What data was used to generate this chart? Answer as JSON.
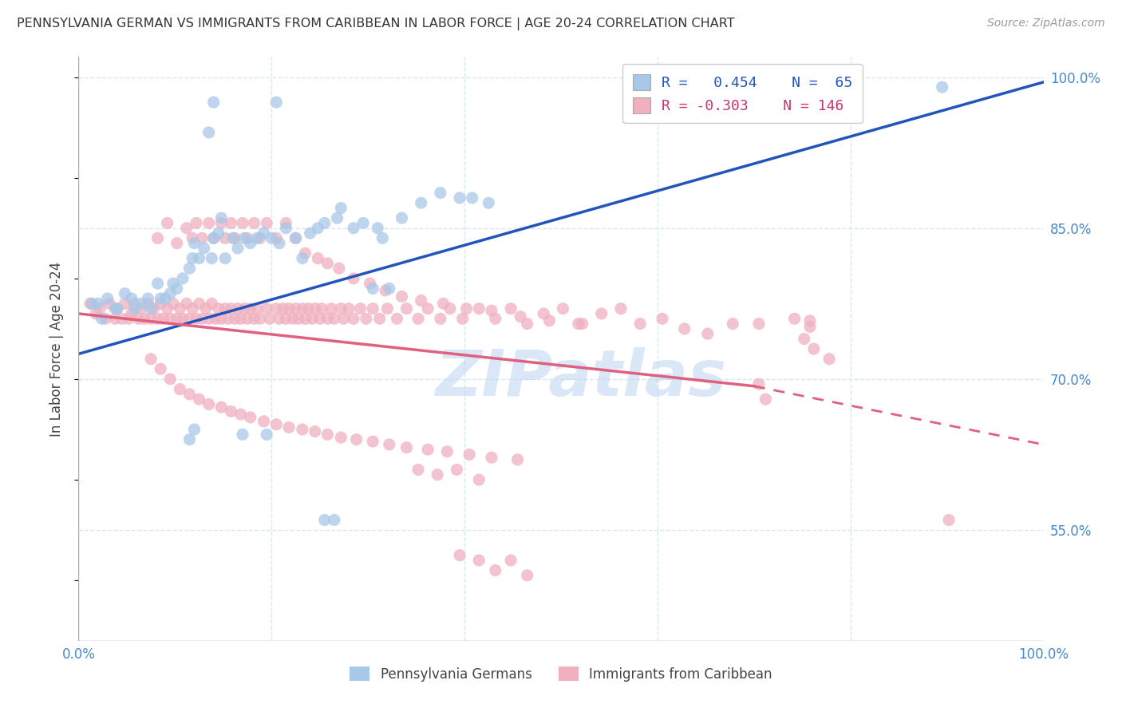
{
  "title": "PENNSYLVANIA GERMAN VS IMMIGRANTS FROM CARIBBEAN IN LABOR FORCE | AGE 20-24 CORRELATION CHART",
  "source": "Source: ZipAtlas.com",
  "ylabel": "In Labor Force | Age 20-24",
  "xlim": [
    0.0,
    1.0
  ],
  "ylim": [
    0.44,
    1.02
  ],
  "x_tick_labels": [
    "0.0%",
    "",
    "",
    "",
    "",
    "100.0%"
  ],
  "x_tick_positions": [
    0.0,
    0.2,
    0.4,
    0.6,
    0.8,
    1.0
  ],
  "y_tick_labels_right": [
    "55.0%",
    "70.0%",
    "85.0%",
    "100.0%"
  ],
  "y_tick_positions_right": [
    0.55,
    0.7,
    0.85,
    1.0
  ],
  "blue_color": "#a8c8e8",
  "pink_color": "#f0b0c0",
  "blue_line_color": "#2255bb",
  "pink_line_color": "#e06080",
  "blue_line": [
    0.0,
    1.0,
    0.725,
    0.995
  ],
  "pink_line_solid": [
    0.0,
    0.7,
    0.765,
    0.693
  ],
  "pink_line_dashed": [
    0.7,
    1.0,
    0.693,
    0.635
  ],
  "blue_scatter": [
    [
      0.014,
      0.775
    ],
    [
      0.02,
      0.775
    ],
    [
      0.024,
      0.76
    ],
    [
      0.03,
      0.78
    ],
    [
      0.038,
      0.77
    ],
    [
      0.04,
      0.77
    ],
    [
      0.048,
      0.785
    ],
    [
      0.055,
      0.78
    ],
    [
      0.058,
      0.77
    ],
    [
      0.065,
      0.775
    ],
    [
      0.072,
      0.78
    ],
    [
      0.075,
      0.77
    ],
    [
      0.082,
      0.795
    ],
    [
      0.085,
      0.78
    ],
    [
      0.09,
      0.78
    ],
    [
      0.095,
      0.785
    ],
    [
      0.098,
      0.795
    ],
    [
      0.102,
      0.79
    ],
    [
      0.108,
      0.8
    ],
    [
      0.115,
      0.81
    ],
    [
      0.118,
      0.82
    ],
    [
      0.12,
      0.835
    ],
    [
      0.125,
      0.82
    ],
    [
      0.13,
      0.83
    ],
    [
      0.138,
      0.82
    ],
    [
      0.14,
      0.84
    ],
    [
      0.145,
      0.845
    ],
    [
      0.148,
      0.86
    ],
    [
      0.152,
      0.82
    ],
    [
      0.16,
      0.84
    ],
    [
      0.165,
      0.83
    ],
    [
      0.172,
      0.84
    ],
    [
      0.178,
      0.835
    ],
    [
      0.185,
      0.84
    ],
    [
      0.192,
      0.845
    ],
    [
      0.2,
      0.84
    ],
    [
      0.208,
      0.835
    ],
    [
      0.215,
      0.85
    ],
    [
      0.225,
      0.84
    ],
    [
      0.232,
      0.82
    ],
    [
      0.24,
      0.845
    ],
    [
      0.248,
      0.85
    ],
    [
      0.255,
      0.855
    ],
    [
      0.268,
      0.86
    ],
    [
      0.272,
      0.87
    ],
    [
      0.285,
      0.85
    ],
    [
      0.295,
      0.855
    ],
    [
      0.31,
      0.85
    ],
    [
      0.315,
      0.84
    ],
    [
      0.335,
      0.86
    ],
    [
      0.355,
      0.875
    ],
    [
      0.375,
      0.885
    ],
    [
      0.395,
      0.88
    ],
    [
      0.408,
      0.88
    ],
    [
      0.425,
      0.875
    ],
    [
      0.115,
      0.64
    ],
    [
      0.12,
      0.65
    ],
    [
      0.17,
      0.645
    ],
    [
      0.195,
      0.645
    ],
    [
      0.255,
      0.56
    ],
    [
      0.265,
      0.56
    ],
    [
      0.305,
      0.79
    ],
    [
      0.322,
      0.79
    ],
    [
      0.72,
      0.98
    ],
    [
      0.895,
      0.99
    ],
    [
      0.135,
      0.945
    ],
    [
      0.14,
      0.975
    ],
    [
      0.205,
      0.975
    ]
  ],
  "pink_scatter": [
    [
      0.012,
      0.775
    ],
    [
      0.018,
      0.765
    ],
    [
      0.022,
      0.77
    ],
    [
      0.028,
      0.76
    ],
    [
      0.032,
      0.775
    ],
    [
      0.038,
      0.76
    ],
    [
      0.04,
      0.77
    ],
    [
      0.045,
      0.76
    ],
    [
      0.048,
      0.775
    ],
    [
      0.052,
      0.76
    ],
    [
      0.055,
      0.765
    ],
    [
      0.058,
      0.775
    ],
    [
      0.062,
      0.76
    ],
    [
      0.065,
      0.77
    ],
    [
      0.068,
      0.76
    ],
    [
      0.072,
      0.775
    ],
    [
      0.075,
      0.76
    ],
    [
      0.078,
      0.77
    ],
    [
      0.082,
      0.76
    ],
    [
      0.085,
      0.775
    ],
    [
      0.088,
      0.76
    ],
    [
      0.092,
      0.77
    ],
    [
      0.095,
      0.76
    ],
    [
      0.098,
      0.775
    ],
    [
      0.102,
      0.76
    ],
    [
      0.105,
      0.77
    ],
    [
      0.108,
      0.76
    ],
    [
      0.112,
      0.775
    ],
    [
      0.115,
      0.76
    ],
    [
      0.118,
      0.77
    ],
    [
      0.122,
      0.76
    ],
    [
      0.125,
      0.775
    ],
    [
      0.128,
      0.76
    ],
    [
      0.132,
      0.77
    ],
    [
      0.135,
      0.76
    ],
    [
      0.138,
      0.775
    ],
    [
      0.142,
      0.76
    ],
    [
      0.145,
      0.77
    ],
    [
      0.148,
      0.76
    ],
    [
      0.152,
      0.77
    ],
    [
      0.155,
      0.76
    ],
    [
      0.158,
      0.77
    ],
    [
      0.162,
      0.76
    ],
    [
      0.165,
      0.77
    ],
    [
      0.168,
      0.76
    ],
    [
      0.172,
      0.77
    ],
    [
      0.175,
      0.76
    ],
    [
      0.178,
      0.77
    ],
    [
      0.182,
      0.76
    ],
    [
      0.185,
      0.77
    ],
    [
      0.188,
      0.76
    ],
    [
      0.195,
      0.77
    ],
    [
      0.198,
      0.76
    ],
    [
      0.205,
      0.77
    ],
    [
      0.208,
      0.76
    ],
    [
      0.212,
      0.77
    ],
    [
      0.215,
      0.76
    ],
    [
      0.218,
      0.77
    ],
    [
      0.222,
      0.76
    ],
    [
      0.225,
      0.77
    ],
    [
      0.228,
      0.76
    ],
    [
      0.232,
      0.77
    ],
    [
      0.235,
      0.76
    ],
    [
      0.238,
      0.77
    ],
    [
      0.242,
      0.76
    ],
    [
      0.245,
      0.77
    ],
    [
      0.25,
      0.76
    ],
    [
      0.252,
      0.77
    ],
    [
      0.258,
      0.76
    ],
    [
      0.262,
      0.77
    ],
    [
      0.265,
      0.76
    ],
    [
      0.272,
      0.77
    ],
    [
      0.275,
      0.76
    ],
    [
      0.28,
      0.77
    ],
    [
      0.285,
      0.76
    ],
    [
      0.292,
      0.77
    ],
    [
      0.298,
      0.76
    ],
    [
      0.305,
      0.77
    ],
    [
      0.312,
      0.76
    ],
    [
      0.32,
      0.77
    ],
    [
      0.33,
      0.76
    ],
    [
      0.34,
      0.77
    ],
    [
      0.352,
      0.76
    ],
    [
      0.362,
      0.77
    ],
    [
      0.375,
      0.76
    ],
    [
      0.385,
      0.77
    ],
    [
      0.398,
      0.76
    ],
    [
      0.415,
      0.77
    ],
    [
      0.432,
      0.76
    ],
    [
      0.448,
      0.77
    ],
    [
      0.465,
      0.755
    ],
    [
      0.482,
      0.765
    ],
    [
      0.502,
      0.77
    ],
    [
      0.522,
      0.755
    ],
    [
      0.542,
      0.765
    ],
    [
      0.562,
      0.77
    ],
    [
      0.582,
      0.755
    ],
    [
      0.605,
      0.76
    ],
    [
      0.628,
      0.75
    ],
    [
      0.652,
      0.745
    ],
    [
      0.678,
      0.755
    ],
    [
      0.082,
      0.84
    ],
    [
      0.092,
      0.855
    ],
    [
      0.102,
      0.835
    ],
    [
      0.112,
      0.85
    ],
    [
      0.118,
      0.84
    ],
    [
      0.122,
      0.855
    ],
    [
      0.128,
      0.84
    ],
    [
      0.135,
      0.855
    ],
    [
      0.14,
      0.84
    ],
    [
      0.148,
      0.855
    ],
    [
      0.152,
      0.84
    ],
    [
      0.158,
      0.855
    ],
    [
      0.162,
      0.84
    ],
    [
      0.17,
      0.855
    ],
    [
      0.175,
      0.84
    ],
    [
      0.182,
      0.855
    ],
    [
      0.188,
      0.84
    ],
    [
      0.195,
      0.855
    ],
    [
      0.205,
      0.84
    ],
    [
      0.215,
      0.855
    ],
    [
      0.225,
      0.84
    ],
    [
      0.235,
      0.825
    ],
    [
      0.248,
      0.82
    ],
    [
      0.258,
      0.815
    ],
    [
      0.27,
      0.81
    ],
    [
      0.285,
      0.8
    ],
    [
      0.302,
      0.795
    ],
    [
      0.318,
      0.788
    ],
    [
      0.335,
      0.782
    ],
    [
      0.355,
      0.778
    ],
    [
      0.378,
      0.775
    ],
    [
      0.402,
      0.77
    ],
    [
      0.428,
      0.768
    ],
    [
      0.458,
      0.762
    ],
    [
      0.488,
      0.758
    ],
    [
      0.518,
      0.755
    ],
    [
      0.075,
      0.72
    ],
    [
      0.085,
      0.71
    ],
    [
      0.095,
      0.7
    ],
    [
      0.105,
      0.69
    ],
    [
      0.115,
      0.685
    ],
    [
      0.125,
      0.68
    ],
    [
      0.135,
      0.675
    ],
    [
      0.148,
      0.672
    ],
    [
      0.158,
      0.668
    ],
    [
      0.168,
      0.665
    ],
    [
      0.178,
      0.662
    ],
    [
      0.192,
      0.658
    ],
    [
      0.205,
      0.655
    ],
    [
      0.218,
      0.652
    ],
    [
      0.232,
      0.65
    ],
    [
      0.245,
      0.648
    ],
    [
      0.258,
      0.645
    ],
    [
      0.272,
      0.642
    ],
    [
      0.288,
      0.64
    ],
    [
      0.305,
      0.638
    ],
    [
      0.322,
      0.635
    ],
    [
      0.34,
      0.632
    ],
    [
      0.362,
      0.63
    ],
    [
      0.382,
      0.628
    ],
    [
      0.405,
      0.625
    ],
    [
      0.428,
      0.622
    ],
    [
      0.455,
      0.62
    ],
    [
      0.395,
      0.525
    ],
    [
      0.415,
      0.52
    ],
    [
      0.432,
      0.51
    ],
    [
      0.448,
      0.52
    ],
    [
      0.465,
      0.505
    ],
    [
      0.352,
      0.61
    ],
    [
      0.372,
      0.605
    ],
    [
      0.392,
      0.61
    ],
    [
      0.415,
      0.6
    ],
    [
      0.705,
      0.695
    ],
    [
      0.712,
      0.68
    ],
    [
      0.752,
      0.74
    ],
    [
      0.762,
      0.73
    ],
    [
      0.778,
      0.72
    ],
    [
      0.742,
      0.76
    ],
    [
      0.758,
      0.752
    ],
    [
      0.705,
      0.755
    ],
    [
      0.758,
      0.758
    ],
    [
      0.902,
      0.56
    ]
  ],
  "watermark_text": "ZIPatlas",
  "watermark_color": "#c0d8f0",
  "background_color": "#ffffff",
  "grid_color": "#d8e8f0",
  "tick_color": "#4488cc"
}
